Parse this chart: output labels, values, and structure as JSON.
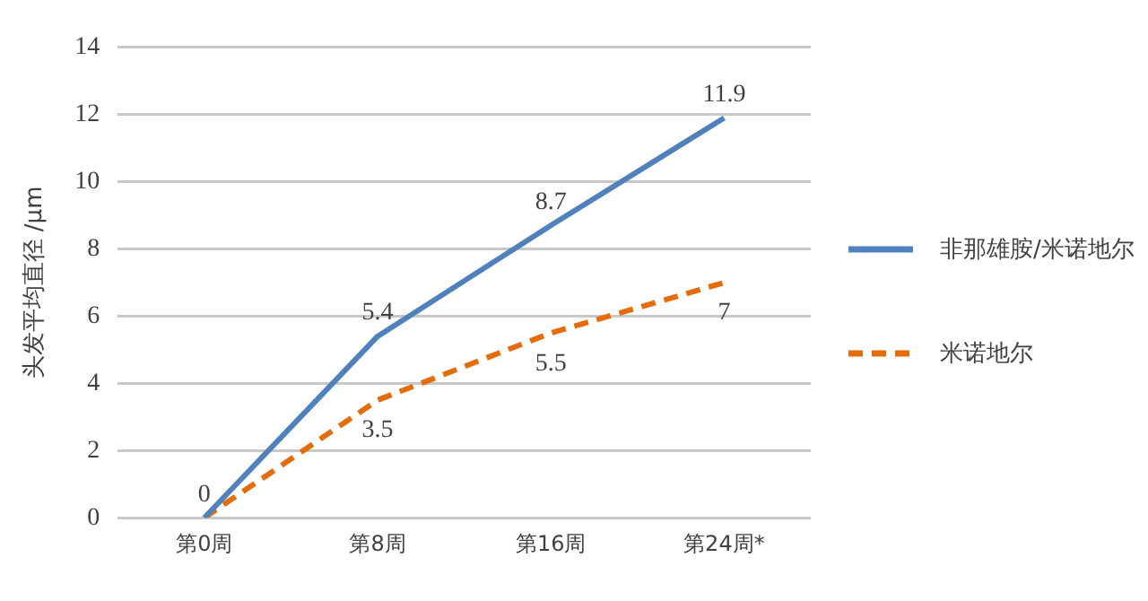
{
  "chart_data": {
    "type": "line",
    "ylabel": "头发平均直径 /μm",
    "categories": [
      "第0周",
      "第8周",
      "第16周",
      "第24周*"
    ],
    "series": [
      {
        "name": "非那雄胺/米诺地尔",
        "color": "#4f81bd",
        "line_style": "solid",
        "values": [
          0,
          5.4,
          8.7,
          11.9
        ],
        "value_labels": [
          "0",
          "5.4",
          "8.7",
          "11.9"
        ]
      },
      {
        "name": "米诺地尔",
        "color": "#e46c0a",
        "line_style": "dashed",
        "values": [
          0,
          3.5,
          5.5,
          7
        ],
        "value_labels": [
          null,
          "3.5",
          "5.5",
          "7"
        ]
      }
    ],
    "ylim": [
      0,
      14
    ],
    "yticks": [
      0,
      2,
      4,
      6,
      8,
      10,
      12,
      14
    ],
    "grid": "y",
    "legend": "right",
    "marker": "none"
  }
}
